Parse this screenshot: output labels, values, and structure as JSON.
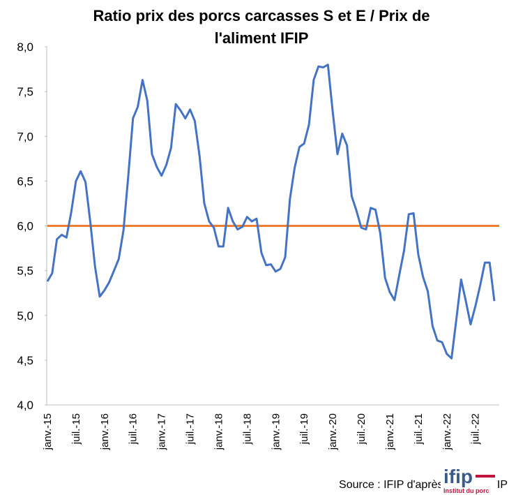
{
  "chart_data": {
    "type": "line",
    "title_lines": [
      "Ratio prix des porcs carcasses S et E / Prix de",
      "l'aliment IFIP"
    ],
    "categories": [
      "janv.-15",
      null,
      null,
      null,
      null,
      null,
      "juil.-15",
      null,
      null,
      null,
      null,
      null,
      "janv.-16",
      null,
      null,
      null,
      null,
      null,
      "juil.-16",
      null,
      null,
      null,
      null,
      null,
      "janv.-17",
      null,
      null,
      null,
      null,
      null,
      "juil.-17",
      null,
      null,
      null,
      null,
      null,
      "janv.-18",
      null,
      null,
      null,
      null,
      null,
      "juil.-18",
      null,
      null,
      null,
      null,
      null,
      "janv.-19",
      null,
      null,
      null,
      null,
      null,
      "juil.-19",
      null,
      null,
      null,
      null,
      null,
      "janv.-20",
      null,
      null,
      null,
      null,
      null,
      "juil.-20",
      null,
      null,
      null,
      null,
      null,
      "janv.-21",
      null,
      null,
      null,
      null,
      null,
      "juil.-21",
      null,
      null,
      null,
      null,
      null,
      "janv.-22",
      null,
      null,
      null,
      null,
      null,
      "juil.-22",
      null,
      null,
      null,
      null
    ],
    "series": [
      {
        "color": "#4472c4",
        "values": [
          5.38,
          5.47,
          5.85,
          5.9,
          5.87,
          6.15,
          6.5,
          6.61,
          6.49,
          6.05,
          5.55,
          5.21,
          5.28,
          5.37,
          5.5,
          5.63,
          5.95,
          6.55,
          7.2,
          7.33,
          7.63,
          7.4,
          6.8,
          6.66,
          6.56,
          6.68,
          6.87,
          7.36,
          7.29,
          7.2,
          7.3,
          7.17,
          6.78,
          6.25,
          6.05,
          5.98,
          5.77,
          5.77,
          6.2,
          6.05,
          5.96,
          5.99,
          6.1,
          6.05,
          6.08,
          5.7,
          5.56,
          5.57,
          5.49,
          5.52,
          5.65,
          6.3,
          6.65,
          6.88,
          6.92,
          7.13,
          7.63,
          7.78,
          7.77,
          7.8,
          7.28,
          6.8,
          7.03,
          6.9,
          6.33,
          6.17,
          5.98,
          5.96,
          6.2,
          6.18,
          5.92,
          5.42,
          5.26,
          5.17,
          5.45,
          5.72,
          6.13,
          6.14,
          5.68,
          5.43,
          5.27,
          4.88,
          4.72,
          4.7,
          4.57,
          4.52,
          4.95,
          5.4,
          5.16,
          4.9,
          5.1,
          5.33,
          5.59,
          5.59,
          5.16
        ]
      }
    ],
    "reference_line": {
      "value": 6.0,
      "color": "#ed7d31"
    },
    "ylim": [
      4.0,
      8.0
    ],
    "yticks": [
      {
        "value": 4.0,
        "label": "4,0"
      },
      {
        "value": 4.5,
        "label": "4,5"
      },
      {
        "value": 5.0,
        "label": "5,0"
      },
      {
        "value": 5.5,
        "label": "5,5"
      },
      {
        "value": 6.0,
        "label": "6,0"
      },
      {
        "value": 6.5,
        "label": "6,5"
      },
      {
        "value": 7.0,
        "label": "7,0"
      },
      {
        "value": 7.5,
        "label": "7,5"
      },
      {
        "value": 8.0,
        "label": "8,0"
      }
    ],
    "source": "Source : IFIP d'après RNM et IFIP",
    "logo": {
      "name": "ifip",
      "tagline": "Institut du porc"
    }
  }
}
